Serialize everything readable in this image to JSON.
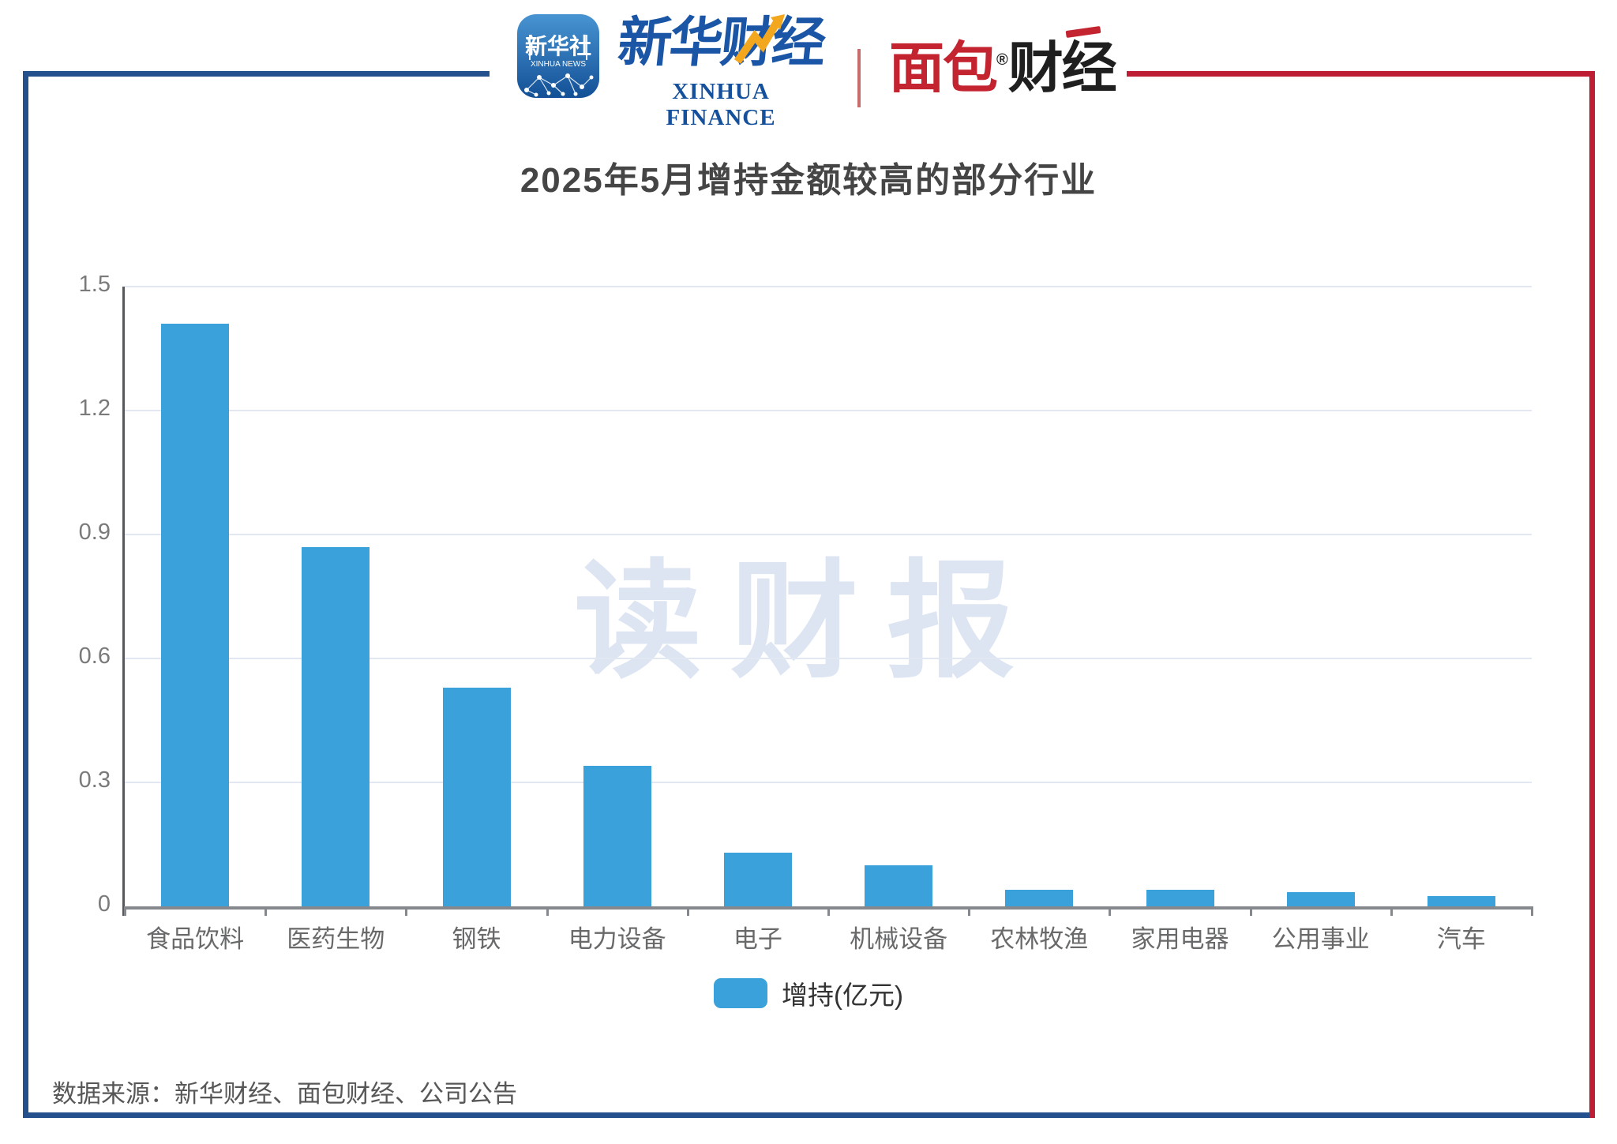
{
  "header": {
    "xinhua_news_icon": {
      "line1": "新华社",
      "line2": "XINHUA NEWS"
    },
    "xinhua_finance": {
      "cn": "新华财经",
      "en": "XINHUA FINANCE"
    },
    "bread_finance": {
      "part1": "面包",
      "part2": "财经",
      "reg": "®"
    }
  },
  "chart_data": {
    "type": "bar",
    "title": "2025年5月增持金额较高的部分行业",
    "categories": [
      "食品饮料",
      "医药生物",
      "钢铁",
      "电力设备",
      "电子",
      "机械设备",
      "农林牧渔",
      "家用电器",
      "公用事业",
      "汽车"
    ],
    "values": [
      1.41,
      0.87,
      0.53,
      0.34,
      0.13,
      0.1,
      0.04,
      0.04,
      0.035,
      0.025
    ],
    "series_name": "增持(亿元)",
    "xlabel": "",
    "ylabel": "",
    "ylim": [
      0,
      1.5
    ],
    "ytick_values": [
      0,
      0.3,
      0.6,
      0.9,
      1.2,
      1.5
    ],
    "ytick_labels": [
      "0",
      "0.3",
      "0.6",
      "0.9",
      "1.2",
      "1.5"
    ],
    "grid": true,
    "legend_position": "bottom"
  },
  "legend": {
    "label": "增持(亿元)"
  },
  "watermark": "读财报",
  "footer": {
    "source": "数据来源：新华财经、面包财经、公司公告"
  },
  "colors": {
    "bar": "#3aa1da",
    "frame_blue": "#25508e",
    "frame_red": "#be1e33",
    "gridline": "#e2e8f1",
    "watermark": "#dde5f2"
  }
}
